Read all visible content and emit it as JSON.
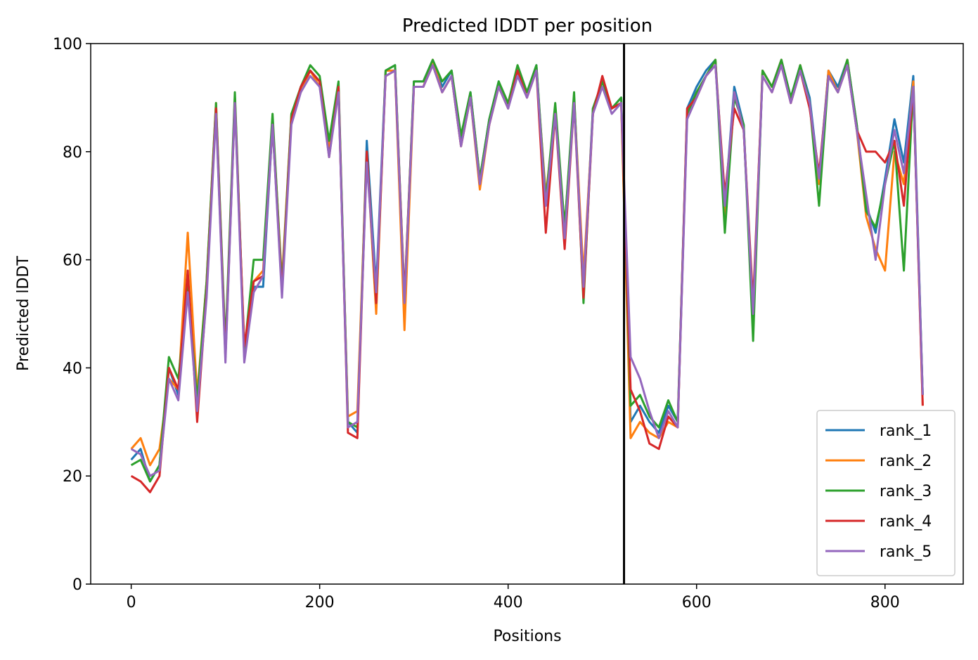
{
  "chart_data": {
    "type": "line",
    "title": "Predicted lDDT per position",
    "x_label": "Positions",
    "y_label": "Predicted lDDT",
    "x": [
      0,
      10,
      20,
      30,
      40,
      50,
      60,
      70,
      80,
      90,
      100,
      110,
      120,
      130,
      140,
      150,
      160,
      170,
      180,
      190,
      200,
      210,
      220,
      230,
      240,
      250,
      260,
      270,
      280,
      290,
      300,
      310,
      320,
      330,
      340,
      350,
      360,
      370,
      380,
      390,
      400,
      410,
      420,
      430,
      440,
      450,
      460,
      470,
      480,
      490,
      500,
      510,
      520,
      530,
      540,
      550,
      560,
      570,
      580,
      590,
      600,
      610,
      620,
      630,
      640,
      650,
      660,
      670,
      680,
      690,
      700,
      710,
      720,
      730,
      740,
      750,
      760,
      770,
      780,
      790,
      800,
      810,
      820,
      830,
      840
    ],
    "series": [
      {
        "name": "rank_1",
        "color": "#1f77b4",
        "values": [
          23,
          25,
          19,
          22,
          40,
          35,
          56,
          33,
          55,
          88,
          42,
          90,
          42,
          55,
          55,
          85,
          55,
          86,
          92,
          95,
          93,
          80,
          92,
          30,
          28,
          82,
          55,
          95,
          96,
          52,
          93,
          93,
          97,
          92,
          95,
          82,
          91,
          75,
          86,
          93,
          88,
          95,
          91,
          96,
          70,
          88,
          65,
          90,
          55,
          88,
          92,
          88,
          90,
          30,
          33,
          30,
          28,
          33,
          30,
          88,
          92,
          95,
          97,
          70,
          92,
          85,
          48,
          95,
          92,
          97,
          90,
          96,
          90,
          75,
          95,
          92,
          97,
          85,
          70,
          65,
          75,
          86,
          78,
          94,
          35
        ]
      },
      {
        "name": "rank_2",
        "color": "#ff7f0e",
        "values": [
          25,
          27,
          22,
          25,
          38,
          36,
          65,
          35,
          56,
          89,
          43,
          90,
          43,
          56,
          58,
          86,
          56,
          87,
          91,
          95,
          92,
          81,
          91,
          31,
          32,
          80,
          50,
          95,
          95,
          47,
          92,
          92,
          97,
          91,
          94,
          81,
          90,
          73,
          85,
          92,
          89,
          95,
          91,
          95,
          72,
          87,
          66,
          90,
          57,
          87,
          93,
          88,
          89,
          27,
          30,
          28,
          27,
          30,
          29,
          87,
          91,
          94,
          97,
          68,
          91,
          84,
          50,
          95,
          92,
          97,
          89,
          96,
          89,
          74,
          95,
          91,
          97,
          84,
          68,
          62,
          58,
          80,
          74,
          93,
          33
        ]
      },
      {
        "name": "rank_3",
        "color": "#2ca02c",
        "values": [
          22,
          23,
          19,
          22,
          42,
          38,
          55,
          34,
          56,
          89,
          44,
          91,
          43,
          60,
          60,
          87,
          55,
          87,
          92,
          96,
          94,
          82,
          93,
          30,
          29,
          80,
          52,
          95,
          96,
          53,
          93,
          93,
          97,
          93,
          95,
          83,
          91,
          75,
          86,
          93,
          89,
          96,
          91,
          96,
          71,
          89,
          66,
          91,
          52,
          88,
          93,
          88,
          90,
          33,
          35,
          31,
          29,
          34,
          30,
          87,
          91,
          94,
          97,
          65,
          90,
          85,
          45,
          95,
          92,
          97,
          90,
          96,
          89,
          70,
          94,
          91,
          97,
          85,
          69,
          66,
          74,
          82,
          58,
          92,
          35
        ]
      },
      {
        "name": "rank_4",
        "color": "#d62728",
        "values": [
          20,
          19,
          17,
          20,
          40,
          36,
          58,
          30,
          54,
          88,
          42,
          89,
          44,
          56,
          57,
          85,
          54,
          86,
          92,
          95,
          93,
          79,
          92,
          28,
          27,
          80,
          52,
          94,
          95,
          53,
          92,
          92,
          96,
          91,
          94,
          81,
          90,
          74,
          85,
          92,
          88,
          95,
          90,
          95,
          65,
          87,
          62,
          89,
          53,
          87,
          94,
          88,
          89,
          36,
          32,
          26,
          25,
          31,
          29,
          88,
          90,
          94,
          96,
          72,
          88,
          84,
          52,
          94,
          91,
          96,
          89,
          95,
          88,
          76,
          94,
          91,
          96,
          84,
          80,
          80,
          78,
          82,
          70,
          92,
          33
        ]
      },
      {
        "name": "rank_5",
        "color": "#9467bd",
        "values": [
          25,
          24,
          20,
          21,
          38,
          34,
          54,
          32,
          53,
          87,
          41,
          89,
          41,
          54,
          57,
          85,
          53,
          85,
          91,
          94,
          92,
          79,
          91,
          29,
          30,
          78,
          54,
          94,
          95,
          52,
          92,
          92,
          96,
          91,
          94,
          81,
          90,
          74,
          85,
          92,
          88,
          94,
          90,
          95,
          70,
          87,
          64,
          89,
          55,
          87,
          92,
          87,
          89,
          42,
          38,
          32,
          27,
          32,
          29,
          86,
          90,
          94,
          96,
          70,
          91,
          84,
          50,
          94,
          91,
          96,
          89,
          95,
          89,
          75,
          94,
          91,
          96,
          84,
          72,
          60,
          74,
          84,
          76,
          92,
          35
        ]
      }
    ],
    "xlim": [
      -43,
      883
    ],
    "ylim": [
      0,
      100
    ],
    "xticks": [
      0,
      200,
      400,
      600,
      800
    ],
    "yticks": [
      0,
      20,
      40,
      60,
      80,
      100
    ],
    "vline": 523,
    "legend": "lower right"
  }
}
